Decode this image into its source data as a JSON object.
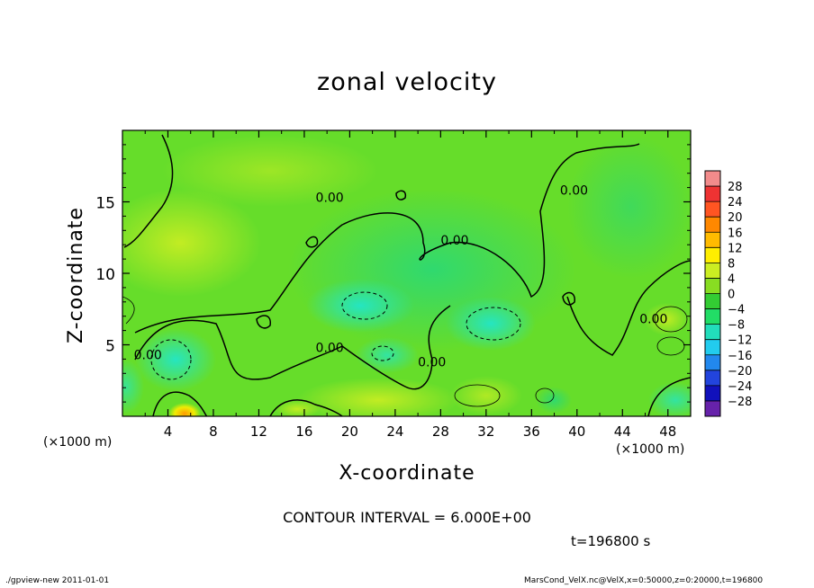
{
  "chart_data": {
    "type": "heatmap",
    "title": "zonal velocity",
    "xlabel": "X-coordinate",
    "ylabel": "Z-coordinate",
    "x_unit": "(×1000 m)",
    "y_unit": "(×1000 m)",
    "xlim": [
      0,
      50
    ],
    "ylim": [
      0,
      20
    ],
    "x_ticks": [
      4,
      8,
      12,
      16,
      20,
      24,
      28,
      32,
      36,
      40,
      44,
      48
    ],
    "y_ticks": [
      5,
      10,
      15
    ],
    "colorbar": {
      "levels": [
        28,
        24,
        20,
        16,
        12,
        8,
        4,
        0,
        -4,
        -8,
        -12,
        -16,
        -20,
        -24,
        -28
      ],
      "colors": [
        "#f28b8b",
        "#ee3333",
        "#ff5522",
        "#ff8800",
        "#ffbb00",
        "#ffee00",
        "#ccee22",
        "#88dd22",
        "#33cc33",
        "#22dd66",
        "#22ddbb",
        "#22ccee",
        "#2288ee",
        "#2244dd",
        "#1111bb",
        "#6622aa"
      ]
    },
    "contour_labels": [
      {
        "text": "0.00",
        "x": 17,
        "z": 15
      },
      {
        "text": "0.00",
        "x": 28,
        "z": 12
      },
      {
        "text": "0.00",
        "x": 38.5,
        "z": 15.5
      },
      {
        "text": "0.00",
        "x": 1,
        "z": 4
      },
      {
        "text": "0.00",
        "x": 17,
        "z": 4.5
      },
      {
        "text": "0.00",
        "x": 26,
        "z": 3.5
      },
      {
        "text": "0.00",
        "x": 45.5,
        "z": 6.5
      }
    ],
    "contour_interval": "CONTOUR INTERVAL = 6.000E+00",
    "time_label": "t=196800 s"
  },
  "footer": {
    "left": "./gpview-new   2011-01-01",
    "right": "MarsCond_VelX.nc@VelX,x=0:50000,z=0:20000,t=196800"
  }
}
